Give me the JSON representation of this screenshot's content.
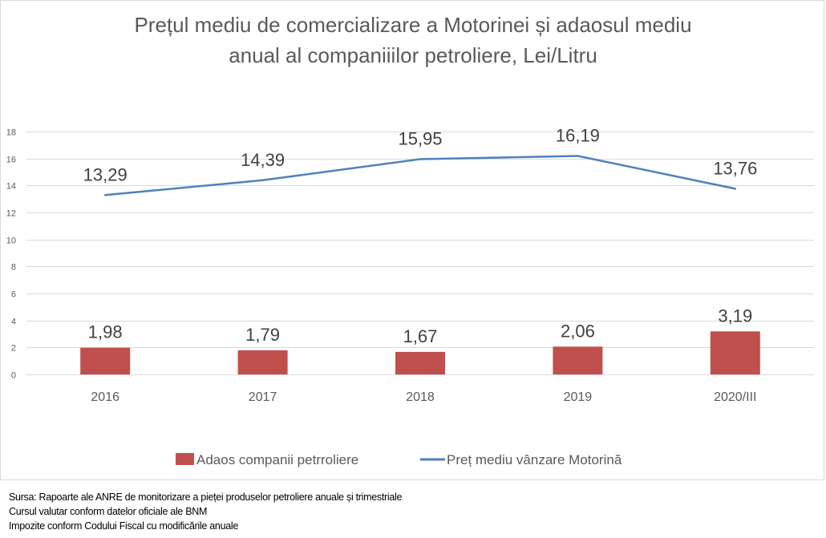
{
  "chart_data": {
    "type": "bar+line",
    "title": "Prețul mediu de comercializare a Motorinei și adaosul mediu anual al companiiilor petroliere, Lei/Litru",
    "title_lines": [
      "Prețul mediu de comercializare a Motorinei și adaosul mediu",
      "anual al companiiilor petroliere, Lei/Litru"
    ],
    "categories": [
      "2016",
      "2017",
      "2018",
      "2019",
      "2020/III"
    ],
    "series": [
      {
        "name": "Adaos companii petrroliere",
        "type": "bar",
        "color": "#c0504d",
        "values": [
          1.98,
          1.79,
          1.67,
          2.06,
          3.19
        ],
        "labels": [
          "1,98",
          "1,79",
          "1,67",
          "2,06",
          "3,19"
        ]
      },
      {
        "name": "Preț mediu vânzare Motorină",
        "type": "line",
        "color": "#4f81bd",
        "values": [
          13.29,
          14.39,
          15.95,
          16.19,
          13.76
        ],
        "labels": [
          "13,29",
          "14,39",
          "15,95",
          "16,19",
          "13,76"
        ]
      }
    ],
    "xlabel": "",
    "ylabel": "",
    "ylim": [
      0,
      18
    ],
    "yticks": [
      0,
      2,
      4,
      6,
      8,
      10,
      12,
      14,
      16,
      18
    ],
    "grid": true,
    "legend_position": "bottom"
  },
  "footnotes": [
    "Sursa: Rapoarte ale ANRE de monitorizare a pieței produselor petroliere anuale și trimestriale",
    "Cursul valutar conform datelor oficiale ale BNM",
    "Impozite conform Codului Fiscal cu modificările anuale"
  ]
}
